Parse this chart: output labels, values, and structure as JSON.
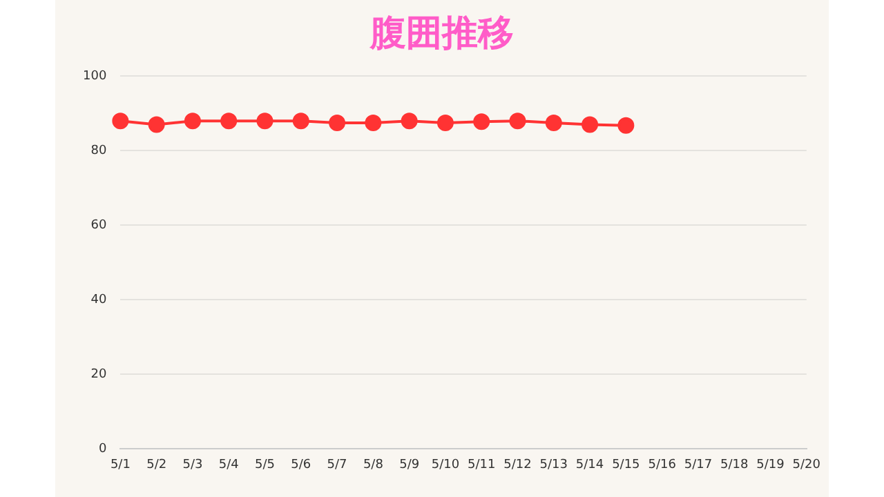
{
  "chart_data": {
    "type": "line",
    "title": "腹囲推移",
    "categories": [
      "5/1",
      "5/2",
      "5/3",
      "5/4",
      "5/5",
      "5/6",
      "5/7",
      "5/8",
      "5/9",
      "5/10",
      "5/11",
      "5/12",
      "5/13",
      "5/14",
      "5/15",
      "5/16",
      "5/17",
      "5/18",
      "5/19",
      "5/20"
    ],
    "series": [
      {
        "color": "#ff3333",
        "values": [
          88,
          87,
          88,
          88,
          88,
          88,
          87.5,
          87.5,
          88,
          87.5,
          87.8,
          88,
          87.5,
          87,
          86.8,
          null,
          null,
          null,
          null,
          null
        ]
      }
    ],
    "ylim": [
      0,
      100
    ],
    "yticks": [
      0,
      20,
      40,
      60,
      80,
      100
    ],
    "grid": "y",
    "legend": false,
    "marker": "circle",
    "line_style": "solid"
  }
}
